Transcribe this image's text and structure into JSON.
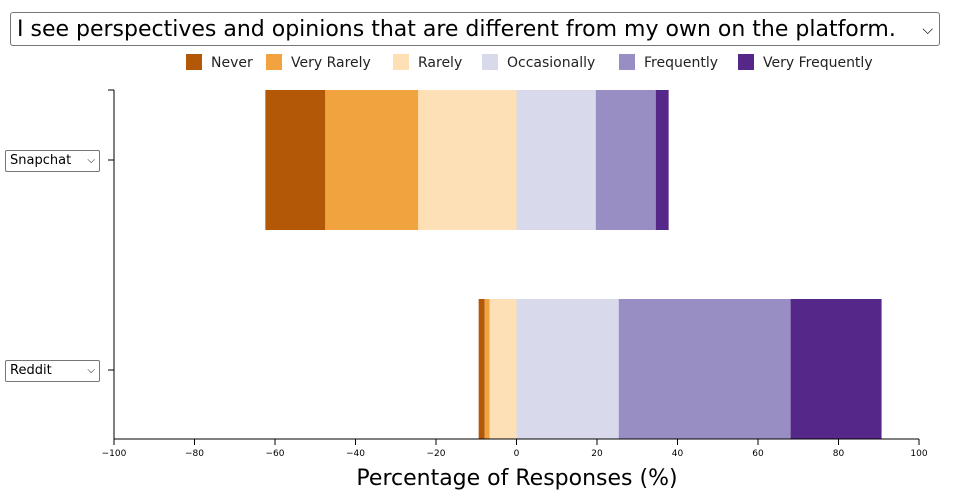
{
  "question": "I see perspectives and opinions that are different from my own on the platform.",
  "chart_data": {
    "type": "bar",
    "orientation": "horizontal",
    "stacked": "diverging",
    "categories": [
      "Snapchat",
      "Reddit"
    ],
    "series": [
      {
        "name": "Never",
        "color": "#b35806",
        "values": [
          14.9,
          1.5
        ]
      },
      {
        "name": "Very Rarely",
        "color": "#f1a340",
        "values": [
          23.1,
          1.2
        ]
      },
      {
        "name": "Rarely",
        "color": "#fee0b6",
        "values": [
          24.4,
          6.7
        ]
      },
      {
        "name": "Occasionally",
        "color": "#d8daeb",
        "values": [
          19.7,
          25.4
        ]
      },
      {
        "name": "Frequently",
        "color": "#998ec3",
        "values": [
          14.9,
          42.7
        ]
      },
      {
        "name": "Very Frequently",
        "color": "#542788",
        "values": [
          3.2,
          22.6
        ]
      }
    ],
    "negative_series": [
      "Never",
      "Very Rarely",
      "Rarely"
    ],
    "xlabel": "Percentage of Responses (%)",
    "xlim": [
      -100,
      100
    ],
    "xticks": [
      "−100",
      "−80",
      "−60",
      "−40",
      "−20",
      "0",
      "20",
      "40",
      "60",
      "80",
      "100"
    ],
    "legend_position": "top"
  }
}
